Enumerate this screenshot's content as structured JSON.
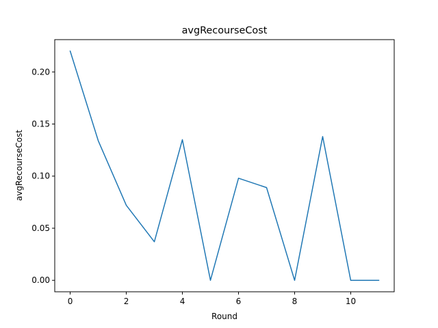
{
  "chart_data": {
    "type": "line",
    "title": "avgRecourseCost",
    "xlabel": "Round",
    "ylabel": "avgRecourseCost",
    "xlim": [
      -0.55,
      11.55
    ],
    "ylim": [
      -0.011,
      0.231
    ],
    "xticks": [
      0,
      2,
      4,
      6,
      8,
      10
    ],
    "yticks": [
      0.0,
      0.05,
      0.1,
      0.15,
      0.2
    ],
    "ytick_labels": [
      "0.00",
      "0.05",
      "0.10",
      "0.15",
      "0.20"
    ],
    "grid": false,
    "series": [
      {
        "color": "#1f77b4",
        "x": [
          0,
          1,
          2,
          3,
          4,
          5,
          6,
          7,
          8,
          9,
          10,
          11
        ],
        "y": [
          0.22,
          0.134,
          0.072,
          0.037,
          0.135,
          0.0,
          0.098,
          0.089,
          0.0,
          0.138,
          0.0,
          0.0
        ]
      }
    ]
  }
}
